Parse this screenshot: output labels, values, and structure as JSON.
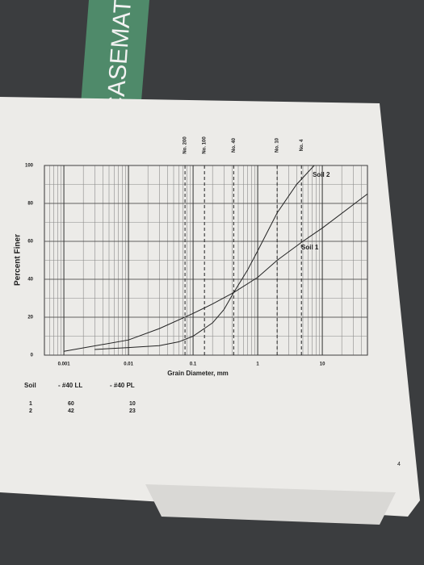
{
  "sign": "CASEMATE",
  "page_number": "4",
  "chart_data": {
    "type": "line",
    "ylabel": "Percent Finer",
    "xlabel": "Grain Diameter, mm",
    "log_x": true,
    "xlim": [
      0.0005,
      50
    ],
    "xticks": [
      0.001,
      0.01,
      0.1,
      1,
      10
    ],
    "ylim": [
      0,
      100
    ],
    "yticks": [
      0,
      20,
      40,
      60,
      80,
      100
    ],
    "grid": true,
    "sieve_lines": [
      {
        "value": 0.075,
        "label": "No. 200"
      },
      {
        "value": 0.15,
        "label": "No. 100"
      },
      {
        "value": 0.425,
        "label": "No. 40"
      },
      {
        "value": 2,
        "label": "No. 10"
      },
      {
        "value": 4.75,
        "label": "No. 4"
      }
    ],
    "series": [
      {
        "name": "Soil 1",
        "color": "#222222",
        "x": [
          0.001,
          0.01,
          0.03,
          0.1,
          0.2,
          0.425,
          1,
          2,
          5,
          10,
          50
        ],
        "values": [
          2,
          8,
          14,
          22,
          27,
          33,
          41,
          50,
          60,
          67,
          85
        ]
      },
      {
        "name": "Soil 2",
        "color": "#222222",
        "x": [
          0.003,
          0.01,
          0.03,
          0.06,
          0.1,
          0.2,
          0.3,
          0.425,
          0.7,
          1,
          2,
          4,
          7.5
        ],
        "values": [
          3,
          4,
          5,
          7,
          10,
          17,
          24,
          33,
          45,
          55,
          75,
          90,
          100
        ]
      }
    ]
  },
  "table": {
    "header": [
      "Soil",
      "- #40 LL",
      "- #40 PL"
    ],
    "rows": [
      [
        "1",
        "60",
        "10"
      ],
      [
        "2",
        "42",
        "23"
      ]
    ]
  }
}
